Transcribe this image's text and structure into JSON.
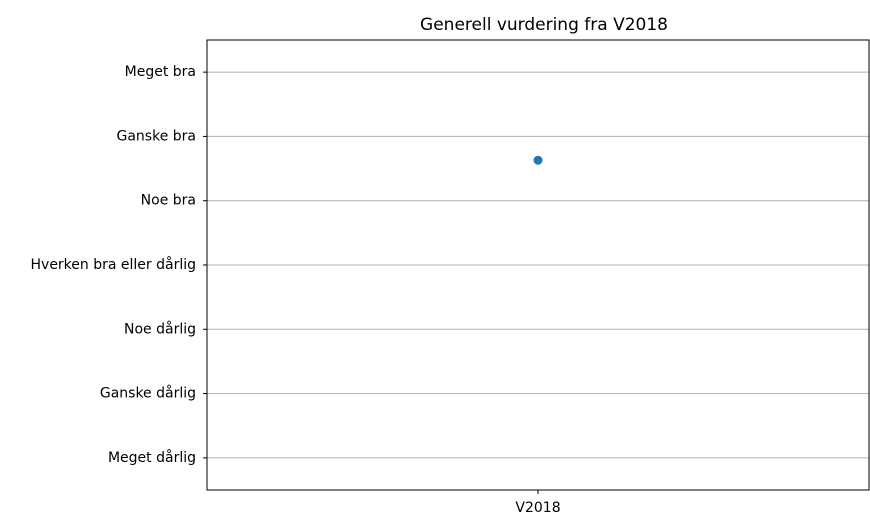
{
  "chart_data": {
    "type": "scatter",
    "title": "Generell vurdering fra V2018",
    "categories": [
      "V2018"
    ],
    "series": [
      {
        "name": "V2018",
        "color": "#1f77b4",
        "values": [
          5.63
        ]
      }
    ],
    "ylim": [
      0.5,
      7.5
    ],
    "yticks": [
      {
        "value": 1,
        "label": "Meget dårlig"
      },
      {
        "value": 2,
        "label": "Ganske dårlig"
      },
      {
        "value": 3,
        "label": "Noe dårlig"
      },
      {
        "value": 4,
        "label": "Hverken bra eller dårlig"
      },
      {
        "value": 5,
        "label": "Noe bra"
      },
      {
        "value": 6,
        "label": "Ganske bra"
      },
      {
        "value": 7,
        "label": "Meget bra"
      }
    ],
    "grid": true
  }
}
